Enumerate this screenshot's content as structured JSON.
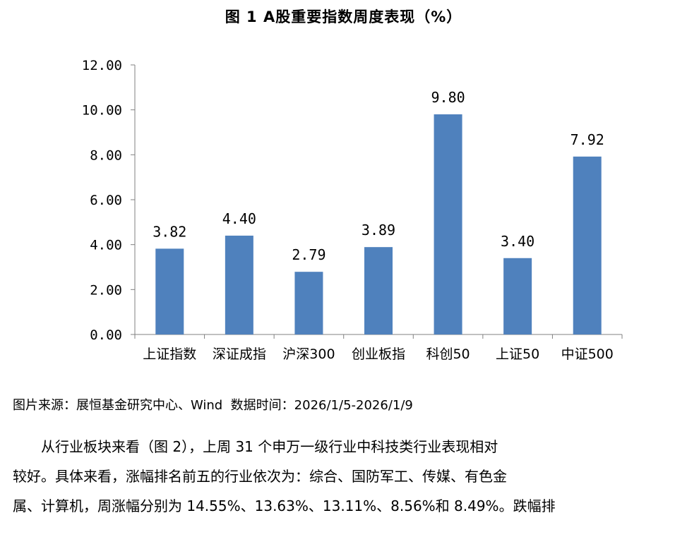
{
  "title": "图 1 A股重要指数周度表现（%）",
  "source_note": "图片来源：展恒基金研究中心、Wind  数据时间：2026/1/5-2026/1/9",
  "paragraph": {
    "lines": [
      "从行业板块来看（图 2），上周 31 个申万一级行业中科技类行业表现相对",
      "较好。具体来看，涨幅排名前五的行业依次为：综合、国防军工、传媒、有色金",
      "属、计算机，周涨幅分别为 14.55%、13.63%、13.11%、8.56%和 8.49%。跌幅排"
    ]
  },
  "chart_data": {
    "type": "bar",
    "categories": [
      "上证指数",
      "深证成指",
      "沪深300",
      "创业板指",
      "科创50",
      "上证50",
      "中证500"
    ],
    "values": [
      3.82,
      4.4,
      2.79,
      3.89,
      9.8,
      3.4,
      7.92
    ],
    "data_labels": [
      "3.82",
      "4.40",
      "2.79",
      "3.89",
      "9.80",
      "3.40",
      "7.92"
    ],
    "yticks": [
      "0.00",
      "2.00",
      "4.00",
      "6.00",
      "8.00",
      "10.00",
      "12.00"
    ],
    "ylim": [
      0,
      12
    ],
    "grid": false,
    "legend": "none",
    "bar_color": "#4F81BD"
  }
}
